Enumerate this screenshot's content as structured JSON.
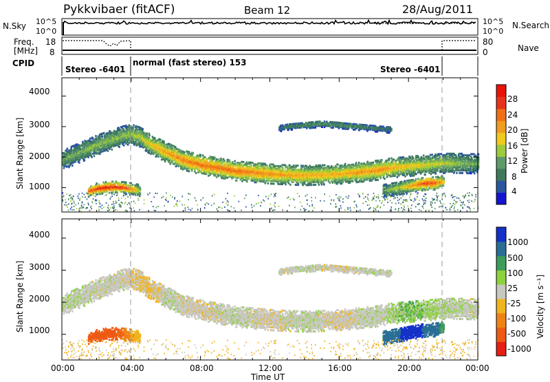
{
  "header": {
    "station": "Pykkvibaer (fitACF)",
    "beam": "Beam 12",
    "date": "28/Aug/2011"
  },
  "noise_panel": {
    "left_label": "N.Sky",
    "right_label": "N.Search",
    "left_ticks": [
      "10^5",
      "10^0"
    ],
    "right_ticks": [
      "10^5",
      "10^0"
    ]
  },
  "freq_panel": {
    "left_label_1": "Freq.",
    "left_label_2": "[MHz]",
    "right_label": "Nave",
    "left_ticks": [
      "18",
      "8"
    ],
    "right_ticks": [
      "80",
      "0"
    ]
  },
  "cpid_panel": {
    "label": "CPID",
    "segments": [
      {
        "text": "Stereo -6401",
        "start_hour": 0,
        "end_hour": 4
      },
      {
        "text": "normal (fast stereo) 153",
        "start_hour": 4,
        "end_hour": 22
      },
      {
        "text": "Stereo -6401",
        "start_hour": 22,
        "end_hour": 24
      }
    ]
  },
  "power_panel": {
    "ylabel": "Slant Range [km]",
    "colorbar_label": "Power [dB]",
    "colorbar_ticks": [
      "28",
      "24",
      "20",
      "16",
      "12",
      "8",
      "4"
    ]
  },
  "velocity_panel": {
    "ylabel": "Slant Range [km]",
    "colorbar_label": "Velocity [m s⁻¹]",
    "colorbar_ticks": [
      "1000",
      "500",
      "100",
      "25",
      "-25",
      "-100",
      "-500",
      "-1000"
    ]
  },
  "xaxis": {
    "label": "Time UT",
    "ticks": [
      "00:00",
      "04:00",
      "08:00",
      "12:00",
      "16:00",
      "20:00",
      "00:00"
    ]
  },
  "yaxis_ticks": [
    "4000",
    "3000",
    "2000",
    "1000"
  ],
  "colors": {
    "power_scale": [
      "#1414d2",
      "#2a56a0",
      "#3e7a5c",
      "#5e9a6a",
      "#9ccb3c",
      "#f0c81e",
      "#f09c1e",
      "#f06e14",
      "#e8321e",
      "#e8140a"
    ],
    "velocity_scale": [
      "#1432c8",
      "#2a6e96",
      "#3c9c5a",
      "#8cd23c",
      "#c8c8c0",
      "#f0b41e",
      "#f08214",
      "#ee5a14",
      "#e61e14"
    ],
    "ground_scatter": "#c8c8c0"
  },
  "chart_data": {
    "type": "heatmap",
    "x_unit": "hours UT",
    "x_range": [
      0,
      24
    ],
    "y_unit": "km",
    "y_range": [
      200,
      4600
    ],
    "power_db_range": [
      0,
      32
    ],
    "velocity_range_ms": [
      -1200,
      1200
    ],
    "scatter_bands": [
      {
        "name": "main echo band",
        "x": [
          0.0,
          1.0,
          2.0,
          3.0,
          3.5,
          4.0,
          4.5,
          5.0,
          6.0,
          7.0,
          8.0,
          9.0,
          10.0,
          11.0,
          12.0,
          13.0,
          14.0,
          15.0,
          16.0,
          17.0,
          18.0,
          18.5,
          19.0,
          20.0,
          21.0,
          22.0,
          23.0,
          24.0
        ],
        "y": [
          1900,
          2150,
          2400,
          2600,
          2700,
          2750,
          2650,
          2450,
          2150,
          1900,
          1750,
          1650,
          1550,
          1500,
          1450,
          1420,
          1400,
          1420,
          1450,
          1500,
          1560,
          1600,
          1650,
          1700,
          1750,
          1800,
          1800,
          1780
        ],
        "power_db": [
          12,
          13,
          14,
          14,
          14,
          15,
          16,
          18,
          21,
          23,
          24,
          24,
          24,
          23,
          22,
          21,
          20,
          20,
          20,
          21,
          22,
          22,
          20,
          18,
          17,
          16,
          14,
          12
        ],
        "velocity_ms": [
          20,
          10,
          0,
          0,
          0,
          -10,
          -20,
          -40,
          10,
          0,
          -10,
          0,
          10,
          0,
          -10,
          0,
          10,
          0,
          -10,
          0,
          10,
          0,
          30,
          50,
          40,
          20,
          10,
          0
        ]
      },
      {
        "name": "lower echo patch",
        "x": [
          1.5,
          2.0,
          2.5,
          3.0,
          3.5,
          4.0,
          4.5
        ],
        "y": [
          880,
          960,
          1000,
          1020,
          1000,
          960,
          900
        ],
        "power_db": [
          24,
          27,
          29,
          28,
          27,
          22,
          16
        ],
        "velocity_ms": [
          -320,
          -340,
          -300,
          -280,
          -250,
          -100,
          -40
        ]
      },
      {
        "name": "upper scatter band",
        "x": [
          12.5,
          13.0,
          14.0,
          15.0,
          16.0,
          17.0,
          18.0,
          19.0
        ],
        "y": [
          2950,
          3000,
          3050,
          3100,
          3050,
          3000,
          2950,
          2900
        ],
        "power_db": [
          8,
          9,
          10,
          11,
          11,
          10,
          9,
          8
        ],
        "velocity_ms": [
          0,
          0,
          10,
          0,
          -10,
          0,
          10,
          0
        ]
      },
      {
        "name": "late lower echoes",
        "x": [
          18.5,
          19.0,
          19.5,
          20.0,
          20.5,
          21.0,
          21.5,
          22.0
        ],
        "y": [
          900,
          950,
          1000,
          1050,
          1100,
          1150,
          1150,
          1200
        ],
        "power_db": [
          12,
          14,
          16,
          20,
          23,
          27,
          25,
          18
        ],
        "velocity_ms": [
          300,
          500,
          700,
          900,
          800,
          600,
          400,
          200
        ]
      }
    ]
  }
}
